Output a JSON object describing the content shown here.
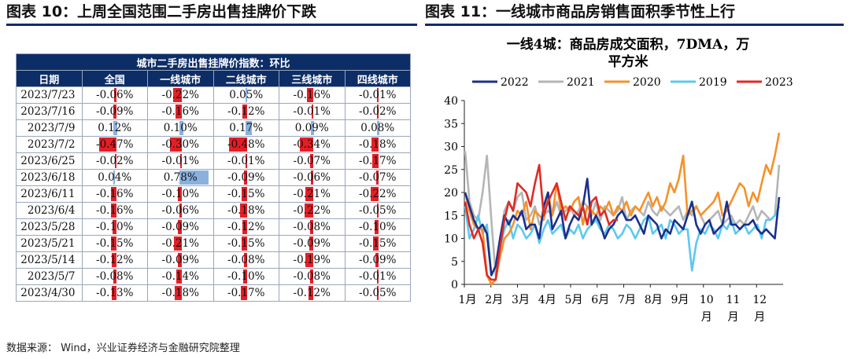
{
  "left_header": "图表 10：上周全国范围二手房出售挂牌价下跌",
  "right_header": "图表 11：一线城市商品房销售面积季节性上行",
  "footer": "数据来源： Wind，兴业证券经济与金融研究院整理",
  "colors": {
    "neg": "#e41e25",
    "pos": "#8ab0de",
    "header_bg": "#0d2d66"
  },
  "table": {
    "title": "城市二手房出售挂牌价指数：环比",
    "columns": [
      "日期",
      "全国",
      "一线城市",
      "二线城市",
      "三线城市",
      "四线城市"
    ],
    "rows": [
      [
        "2023/7/23",
        -0.06,
        -0.22,
        0.05,
        -0.16,
        -0.01
      ],
      [
        "2023/7/16",
        -0.09,
        -0.16,
        -0.12,
        -0.01,
        -0.02
      ],
      [
        "2023/7/9",
        0.12,
        0.1,
        0.17,
        0.09,
        0.08
      ],
      [
        "2023/7/2",
        -0.47,
        -0.3,
        -0.48,
        -0.34,
        -0.18
      ],
      [
        "2023/6/25",
        -0.02,
        -0.01,
        -0.01,
        -0.07,
        -0.17
      ],
      [
        "2023/6/18",
        0.04,
        0.78,
        -0.09,
        -0.06,
        -0.07
      ],
      [
        "2023/6/11",
        -0.16,
        -0.1,
        -0.15,
        -0.21,
        -0.22
      ],
      [
        "2023/6/4",
        -0.16,
        -0.06,
        -0.18,
        -0.22,
        -0.05
      ],
      [
        "2023/5/28",
        -0.1,
        -0.09,
        -0.12,
        -0.08,
        -0.1
      ],
      [
        "2023/5/21",
        -0.15,
        -0.21,
        -0.15,
        -0.09,
        -0.15
      ],
      [
        "2023/5/14",
        -0.12,
        -0.09,
        -0.08,
        -0.19,
        -0.09
      ],
      [
        "2023/5/7",
        -0.08,
        -0.14,
        -0.1,
        -0.08,
        -0.01
      ],
      [
        "2023/4/30",
        -0.13,
        -0.18,
        -0.17,
        -0.12,
        -0.05
      ]
    ]
  },
  "chart_data": {
    "type": "line",
    "title": "一线4城：商品房成交面积，7DMA，万平方米",
    "ylim": [
      0,
      40
    ],
    "yticks": [
      0,
      5,
      10,
      15,
      20,
      25,
      30,
      35,
      40
    ],
    "xticks": [
      "1月",
      "2月",
      "3月",
      "4月",
      "5月",
      "6月",
      "7月",
      "8月",
      "9月",
      "10月",
      "11月",
      "12月"
    ],
    "legend_position": "top",
    "series": [
      {
        "name": "2022",
        "color": "#1c2f8c",
        "values": [
          20,
          17,
          14,
          12,
          13,
          11,
          2,
          4,
          10,
          15,
          13,
          15,
          14,
          16,
          12,
          13,
          13,
          10,
          17,
          20,
          12,
          14,
          16,
          10,
          13,
          15,
          14,
          17,
          23,
          13,
          15,
          13,
          10,
          12,
          13,
          15,
          16,
          14,
          14,
          15,
          13,
          11,
          15,
          14,
          13,
          10,
          12,
          11,
          14,
          13,
          12,
          15,
          18,
          13,
          11,
          13,
          14,
          11,
          12,
          13,
          18,
          13,
          13,
          12,
          13,
          13,
          14,
          12,
          11,
          12,
          11,
          10,
          19
        ]
      },
      {
        "name": "2021",
        "color": "#b5b5b5",
        "values": [
          29,
          18,
          15,
          14,
          20,
          28,
          14,
          2,
          10,
          16,
          18,
          16,
          19,
          20,
          14,
          15,
          17,
          13,
          15,
          16,
          15,
          18,
          15,
          16,
          17,
          15,
          16,
          18,
          17,
          15,
          18,
          14,
          17,
          16,
          15,
          16,
          19,
          14,
          16,
          17,
          16,
          15,
          18,
          16,
          15,
          17,
          16,
          15,
          16,
          17,
          14,
          16,
          15,
          17,
          15,
          13,
          14,
          15,
          16,
          13,
          14,
          15,
          13,
          14,
          13,
          15,
          17,
          14,
          16,
          15,
          14,
          15,
          26
        ]
      },
      {
        "name": "2020",
        "color": "#f5912a",
        "values": [
          20,
          16,
          13,
          12,
          12,
          2,
          0,
          1,
          6,
          10,
          11,
          13,
          16,
          15,
          18,
          12,
          16,
          15,
          14,
          20,
          15,
          22,
          16,
          17,
          16,
          18,
          19,
          13,
          17,
          16,
          15,
          17,
          16,
          18,
          15,
          17,
          16,
          18,
          15,
          17,
          16,
          18,
          20,
          17,
          19,
          16,
          18,
          22,
          20,
          23,
          28,
          15,
          16,
          17,
          15,
          16,
          17,
          18,
          20,
          15,
          16,
          18,
          20,
          22,
          21,
          17,
          20,
          18,
          22,
          26,
          24,
          28,
          33
        ]
      },
      {
        "name": "2019",
        "color": "#5cc8f0",
        "values": [
          17,
          10,
          12,
          15,
          11,
          13,
          2,
          4,
          8,
          12,
          14,
          10,
          13,
          12,
          10,
          11,
          13,
          9,
          12,
          14,
          11,
          12,
          13,
          10,
          12,
          11,
          13,
          10,
          12,
          13,
          14,
          12,
          11,
          13,
          12,
          10,
          11,
          13,
          12,
          10,
          12,
          14,
          15,
          11,
          12,
          13,
          10,
          14,
          13,
          11,
          12,
          12,
          3,
          9,
          12,
          11,
          13,
          12,
          10,
          13,
          12,
          14,
          11,
          12,
          13,
          11,
          12,
          13,
          10,
          14,
          14,
          15,
          17
        ]
      },
      {
        "name": "2023",
        "color": "#e02a26",
        "values": [
          18,
          13,
          10,
          12,
          9,
          2,
          1,
          1,
          8,
          14,
          18,
          16,
          22,
          21,
          20,
          17,
          22,
          26,
          15,
          18,
          20,
          22,
          18,
          14,
          17,
          16,
          15,
          17,
          13,
          18,
          19,
          15,
          16,
          13,
          14,
          14
        ]
      }
    ]
  }
}
